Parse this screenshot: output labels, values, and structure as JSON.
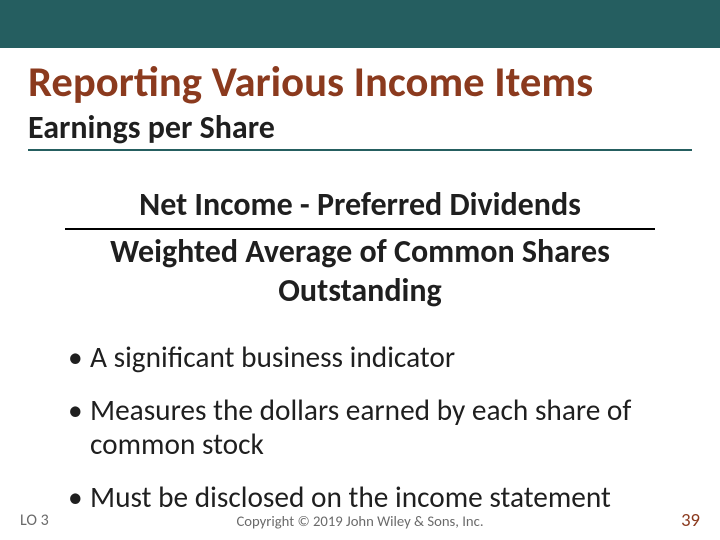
{
  "colors": {
    "top_bar": "#255e60",
    "title": "#8b3a1e",
    "subtitle": "#1f1f1f",
    "subtitle_rule": "#255e60",
    "formula_text": "#1f1f1f",
    "formula_rule": "#000000",
    "bullet_text": "#1f1f1f",
    "lo": "#6a6a6a",
    "copyright": "#6a6a6a",
    "pagenum": "#8b3a1e",
    "background": "#ffffff"
  },
  "fontsize_pt": {
    "title": 32,
    "subtitle": 24,
    "formula": 24,
    "bullets": 22,
    "lo": 12,
    "copyright": 11,
    "pagenum": 14
  },
  "title": "Reporting Various Income Items",
  "subtitle": "Earnings per Share",
  "formula": {
    "numerator": "Net Income - Preferred Dividends",
    "denominator": "Weighted Average of Common Shares Outstanding"
  },
  "bullets": [
    "A significant business indicator",
    "Measures the dollars earned by each share of common stock",
    "Must be disclosed on the income statement"
  ],
  "footer": {
    "lo": "LO 3",
    "copyright": "Copyright © 2019 John Wiley & Sons, Inc.",
    "pagenum": "39"
  }
}
